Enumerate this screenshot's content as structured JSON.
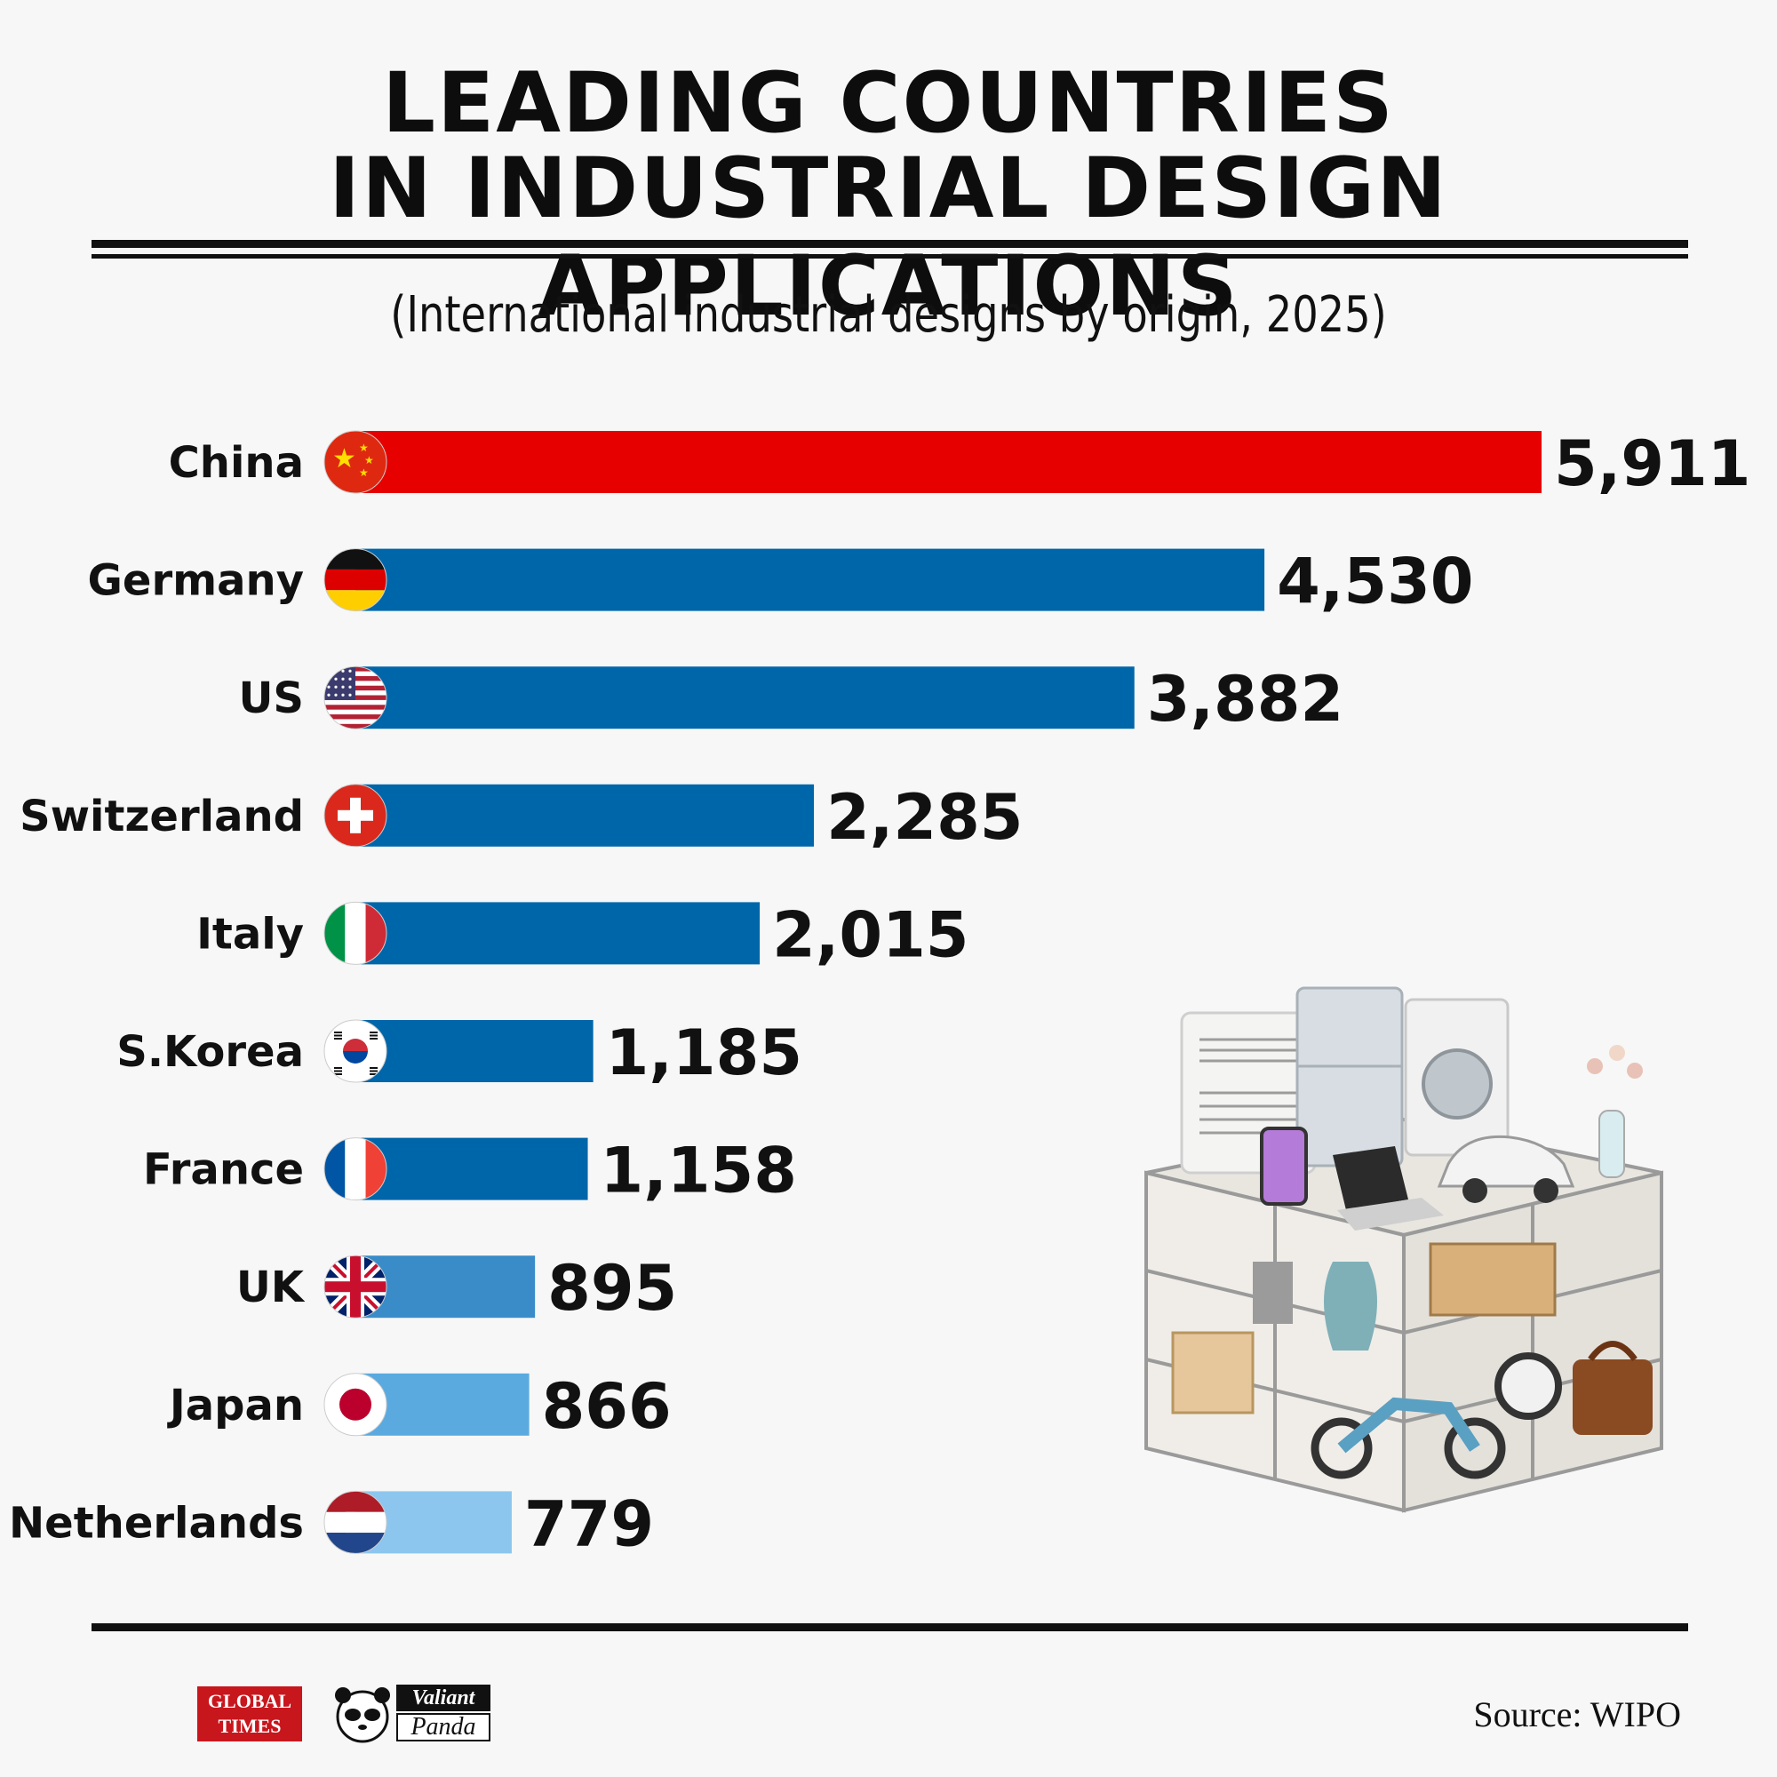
{
  "header": {
    "title_line1": "LEADING COUNTRIES",
    "title_line2": "IN INDUSTRIAL DESIGN APPLICATIONS",
    "subtitle": "(International industrial designs by origin, 2025)"
  },
  "chart_data": {
    "type": "bar",
    "orientation": "horizontal",
    "title": "LEADING COUNTRIES IN INDUSTRIAL DESIGN APPLICATIONS",
    "subtitle": "(International industrial designs by origin, 2025)",
    "categories": [
      "China",
      "Germany",
      "US",
      "Switzerland",
      "Italy",
      "S.Korea",
      "France",
      "UK",
      "Japan",
      "Netherlands"
    ],
    "values": [
      5911,
      4530,
      3882,
      2285,
      2015,
      1185,
      1158,
      895,
      866,
      779
    ],
    "value_labels": [
      "5,911",
      "4,530",
      "3,882",
      "2,285",
      "2,015",
      "1,185",
      "1,158",
      "895",
      "866",
      "779"
    ],
    "bar_colors": [
      "#e60000",
      "#0066aa",
      "#0066aa",
      "#0066aa",
      "#0066aa",
      "#0066aa",
      "#0066aa",
      "#3a8cc9",
      "#5aaae0",
      "#8cc6ee"
    ],
    "flags": [
      "china-flag",
      "germany-flag",
      "us-flag",
      "switzerland-flag",
      "italy-flag",
      "south-korea-flag",
      "france-flag",
      "uk-flag",
      "japan-flag",
      "netherlands-flag"
    ],
    "xlim": [
      0,
      5911
    ]
  },
  "footer": {
    "logo1_line1": "GLOBAL",
    "logo1_line2": "TIMES",
    "logo2_line1": "Valiant",
    "logo2_line2": "Panda",
    "source": "Source: WIPO"
  }
}
